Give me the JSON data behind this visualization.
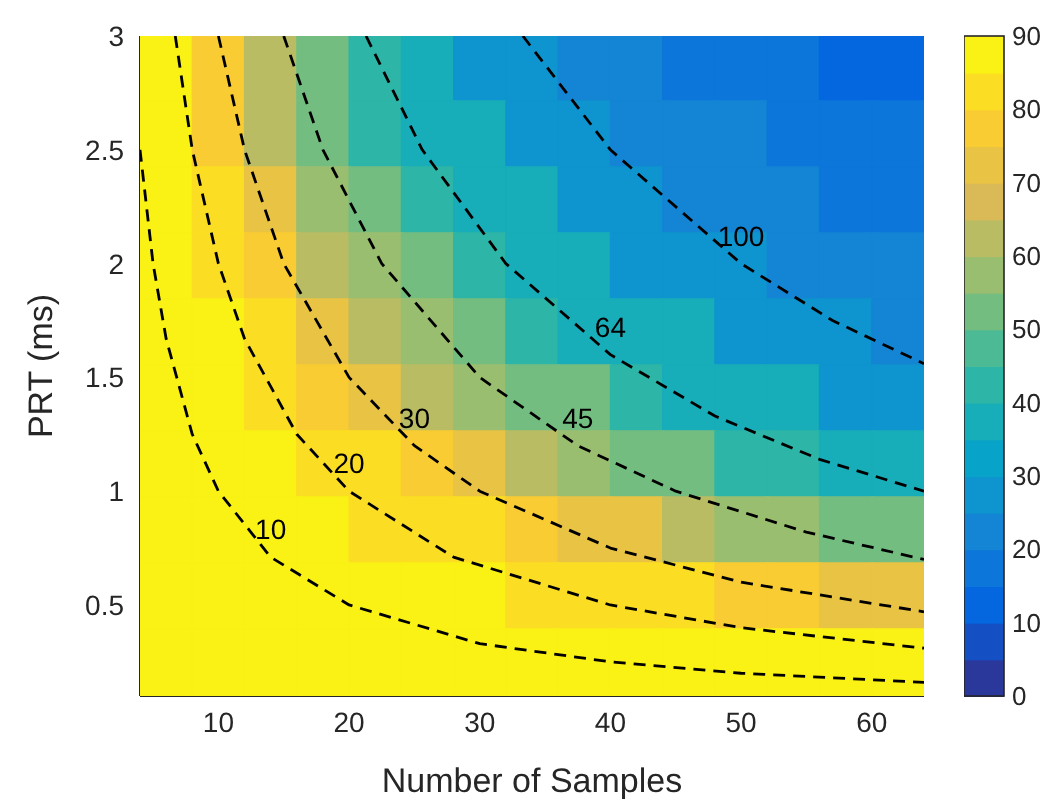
{
  "chart_data": {
    "type": "scatter",
    "xlabel": "Number of Samples",
    "ylabel": "PRT (ms)",
    "xlim": [
      4,
      64
    ],
    "xticks": [
      10,
      20,
      30,
      40,
      50,
      60
    ],
    "ylim": [
      0.1,
      3
    ],
    "yticks": [
      0.5,
      1,
      1.5,
      2,
      2.5,
      3
    ],
    "clim": [
      0,
      90
    ],
    "cticks": [
      0,
      10,
      20,
      30,
      40,
      50,
      60,
      70,
      80,
      90
    ],
    "series": [
      {
        "marker": "square",
        "colors": [
          "#faf115",
          "#f8cc32",
          "#b9bc63",
          "#74bd81",
          "#2db5a7",
          "#17adb9",
          "#0e94ce",
          "#0e94ce",
          "#1485d4",
          "#1485d4",
          "#0c76da",
          "#0c76da",
          "#0c76da",
          "#0567e0",
          "#0567e0",
          "#faf115",
          "#f8cc32",
          "#b9bc63",
          "#74bd81",
          "#2db5a7",
          "#17adb9",
          "#17adb9",
          "#0e94ce",
          "#0e94ce",
          "#1485d4",
          "#1485d4",
          "#1485d4",
          "#0c76da",
          "#0c76da",
          "#0c76da",
          "#faf115",
          "#fbdd23",
          "#e9c344",
          "#9abe70",
          "#74bd81",
          "#2db5a7",
          "#17adb9",
          "#17adb9",
          "#0e94ce",
          "#0e94ce",
          "#1485d4",
          "#1485d4",
          "#1485d4",
          "#0c76da",
          "#0c76da",
          "#faf115",
          "#fbdd23",
          "#f8cc32",
          "#b9bc63",
          "#9abe70",
          "#74bd81",
          "#2db5a7",
          "#17adb9",
          "#17adb9",
          "#0e94ce",
          "#0e94ce",
          "#0e94ce",
          "#1485d4",
          "#1485d4",
          "#1485d4",
          "#faf115",
          "#faf115",
          "#fbdd23",
          "#e9c344",
          "#b9bc63",
          "#9abe70",
          "#74bd81",
          "#2db5a7",
          "#17adb9",
          "#17adb9",
          "#17adb9",
          "#0e94ce",
          "#0e94ce",
          "#0e94ce",
          "#1485d4",
          "#faf115",
          "#faf115",
          "#fbdd23",
          "#f8cc32",
          "#e9c344",
          "#b9bc63",
          "#9abe70",
          "#74bd81",
          "#74bd81",
          "#2db5a7",
          "#17adb9",
          "#17adb9",
          "#17adb9",
          "#0e94ce",
          "#0e94ce",
          "#faf115",
          "#faf115",
          "#faf115",
          "#fbdd23",
          "#fbdd23",
          "#f8cc32",
          "#e9c344",
          "#b9bc63",
          "#9abe70",
          "#74bd81",
          "#74bd81",
          "#2db5a7",
          "#2db5a7",
          "#17adb9",
          "#17adb9",
          "#faf115",
          "#faf115",
          "#faf115",
          "#faf115",
          "#fbdd23",
          "#fbdd23",
          "#fbdd23",
          "#f8cc32",
          "#e9c344",
          "#e9c344",
          "#b9bc63",
          "#9abe70",
          "#9abe70",
          "#74bd81",
          "#74bd81",
          "#faf115",
          "#faf115",
          "#faf115",
          "#faf115",
          "#faf115",
          "#faf115",
          "#faf115",
          "#fbdd23",
          "#fbdd23",
          "#fbdd23",
          "#fbdd23",
          "#f8cc32",
          "#f8cc32",
          "#e9c344",
          "#e9c344",
          "#faf115",
          "#faf115",
          "#faf115",
          "#faf115",
          "#faf115",
          "#faf115",
          "#faf115",
          "#faf115",
          "#faf115",
          "#faf115",
          "#faf115",
          "#faf115",
          "#faf115",
          "#faf115",
          "#faf115"
        ],
        "x": [
          6,
          10,
          14,
          18,
          22,
          26,
          30,
          34,
          38,
          42,
          46,
          50,
          54,
          58,
          62,
          6,
          10,
          14,
          18,
          22,
          26,
          30,
          34,
          38,
          42,
          46,
          50,
          54,
          58,
          62,
          6,
          10,
          14,
          18,
          22,
          26,
          30,
          34,
          38,
          42,
          46,
          50,
          54,
          58,
          62,
          6,
          10,
          14,
          18,
          22,
          26,
          30,
          34,
          38,
          42,
          46,
          50,
          54,
          58,
          62,
          6,
          10,
          14,
          18,
          22,
          26,
          30,
          34,
          38,
          42,
          46,
          50,
          54,
          58,
          62,
          6,
          10,
          14,
          18,
          22,
          26,
          30,
          34,
          38,
          42,
          46,
          50,
          54,
          58,
          62,
          6,
          10,
          14,
          18,
          22,
          26,
          30,
          34,
          38,
          42,
          46,
          50,
          54,
          58,
          62,
          6,
          10,
          14,
          18,
          22,
          26,
          30,
          34,
          38,
          42,
          46,
          50,
          54,
          58,
          62,
          6,
          10,
          14,
          18,
          22,
          26,
          30,
          34,
          38,
          42,
          46,
          50,
          54,
          58,
          62,
          6,
          10,
          14,
          18,
          22,
          26,
          30,
          34,
          38,
          42,
          46,
          50,
          54,
          58,
          62
        ],
        "values": [
          2.86,
          2.86,
          2.86,
          2.86,
          2.86,
          2.86,
          2.86,
          2.86,
          2.86,
          2.86,
          2.86,
          2.86,
          2.86,
          2.86,
          2.86,
          2.57,
          2.57,
          2.57,
          2.57,
          2.57,
          2.57,
          2.57,
          2.57,
          2.57,
          2.57,
          2.57,
          2.57,
          2.57,
          2.57,
          2.57,
          2.28,
          2.28,
          2.28,
          2.28,
          2.28,
          2.28,
          2.28,
          2.28,
          2.28,
          2.28,
          2.28,
          2.28,
          2.28,
          2.28,
          2.28,
          1.99,
          1.99,
          1.99,
          1.99,
          1.99,
          1.99,
          1.99,
          1.99,
          1.99,
          1.99,
          1.99,
          1.99,
          1.99,
          1.99,
          1.99,
          1.7,
          1.7,
          1.7,
          1.7,
          1.7,
          1.7,
          1.7,
          1.7,
          1.7,
          1.7,
          1.7,
          1.7,
          1.7,
          1.7,
          1.7,
          1.41,
          1.41,
          1.41,
          1.41,
          1.41,
          1.41,
          1.41,
          1.41,
          1.41,
          1.41,
          1.41,
          1.41,
          1.41,
          1.41,
          1.41,
          1.12,
          1.12,
          1.12,
          1.12,
          1.12,
          1.12,
          1.12,
          1.12,
          1.12,
          1.12,
          1.12,
          1.12,
          1.12,
          1.12,
          1.12,
          0.83,
          0.83,
          0.83,
          0.83,
          0.83,
          0.83,
          0.83,
          0.83,
          0.83,
          0.83,
          0.83,
          0.83,
          0.83,
          0.83,
          0.83,
          0.54,
          0.54,
          0.54,
          0.54,
          0.54,
          0.54,
          0.54,
          0.54,
          0.54,
          0.54,
          0.54,
          0.54,
          0.54,
          0.54,
          0.54,
          0.25,
          0.25,
          0.25,
          0.25,
          0.25,
          0.25,
          0.25,
          0.25,
          0.25,
          0.25,
          0.25,
          0.25,
          0.25,
          0.25,
          0.25
        ],
        "cvalues": [
          87.5,
          77.5,
          62.5,
          52.5,
          42.5,
          37.5,
          27.5,
          27.5,
          22.5,
          22.5,
          17.5,
          17.5,
          17.5,
          12.5,
          12.5,
          87.5,
          77.5,
          62.5,
          52.5,
          42.5,
          37.5,
          37.5,
          27.5,
          27.5,
          22.5,
          22.5,
          22.5,
          17.5,
          17.5,
          17.5,
          87.5,
          82.5,
          72.5,
          57.5,
          52.5,
          42.5,
          37.5,
          37.5,
          27.5,
          27.5,
          22.5,
          22.5,
          22.5,
          17.5,
          17.5,
          87.5,
          82.5,
          77.5,
          62.5,
          57.5,
          52.5,
          42.5,
          37.5,
          37.5,
          27.5,
          27.5,
          27.5,
          22.5,
          22.5,
          22.5,
          87.5,
          87.5,
          82.5,
          72.5,
          62.5,
          57.5,
          52.5,
          42.5,
          37.5,
          37.5,
          37.5,
          27.5,
          27.5,
          27.5,
          22.5,
          87.5,
          87.5,
          82.5,
          77.5,
          72.5,
          62.5,
          57.5,
          52.5,
          52.5,
          42.5,
          37.5,
          37.5,
          37.5,
          27.5,
          27.5,
          87.5,
          87.5,
          87.5,
          82.5,
          82.5,
          77.5,
          72.5,
          62.5,
          57.5,
          52.5,
          52.5,
          42.5,
          42.5,
          37.5,
          37.5,
          87.5,
          87.5,
          87.5,
          87.5,
          82.5,
          82.5,
          82.5,
          77.5,
          72.5,
          72.5,
          62.5,
          57.5,
          57.5,
          52.5,
          52.5,
          87.5,
          87.5,
          87.5,
          87.5,
          87.5,
          87.5,
          87.5,
          82.5,
          82.5,
          82.5,
          82.5,
          77.5,
          77.5,
          72.5,
          72.5,
          87.5,
          87.5,
          87.5,
          87.5,
          87.5,
          87.5,
          87.5,
          87.5,
          87.5,
          87.5,
          87.5,
          87.5,
          87.5,
          87.5,
          87.5
        ]
      },
      {
        "type": "line",
        "name": "10",
        "color": "#000000",
        "line_style": "dashed",
        "marker": "none",
        "x": [
          4,
          5,
          6,
          8,
          10,
          14,
          20,
          30,
          40,
          50,
          64
        ],
        "values": [
          2.5,
          2,
          1.67,
          1.25,
          1,
          0.71,
          0.5,
          0.33,
          0.25,
          0.2,
          0.16
        ]
      },
      {
        "type": "line",
        "name": "20",
        "color": "#000000",
        "line_style": "dashed",
        "marker": "none",
        "x": [
          6.7,
          8,
          10,
          12,
          16,
          20,
          28,
          40,
          50,
          64
        ],
        "values": [
          3,
          2.5,
          2,
          1.67,
          1.25,
          1,
          0.71,
          0.5,
          0.4,
          0.31
        ]
      },
      {
        "type": "line",
        "name": "30",
        "color": "#000000",
        "line_style": "dashed",
        "marker": "none",
        "x": [
          10,
          12,
          15,
          20,
          25,
          30,
          40,
          50,
          64
        ],
        "values": [
          3,
          2.5,
          2,
          1.5,
          1.2,
          1,
          0.75,
          0.6,
          0.47
        ]
      },
      {
        "type": "line",
        "name": "45",
        "color": "#000000",
        "line_style": "dashed",
        "marker": "none",
        "x": [
          15,
          18,
          22.5,
          30,
          37.5,
          45,
          55,
          64
        ],
        "values": [
          3,
          2.5,
          2,
          1.5,
          1.2,
          1,
          0.82,
          0.7
        ]
      },
      {
        "type": "line",
        "name": "64",
        "color": "#000000",
        "line_style": "dashed",
        "marker": "none",
        "x": [
          21.3,
          25.6,
          32,
          40,
          48,
          56,
          64
        ],
        "values": [
          3,
          2.5,
          2,
          1.6,
          1.33,
          1.14,
          1
        ]
      },
      {
        "type": "line",
        "name": "100",
        "color": "#000000",
        "line_style": "dashed",
        "marker": "none",
        "x": [
          33.3,
          40,
          50,
          57,
          64
        ],
        "values": [
          3,
          2.5,
          2,
          1.75,
          1.56
        ]
      }
    ]
  }
}
